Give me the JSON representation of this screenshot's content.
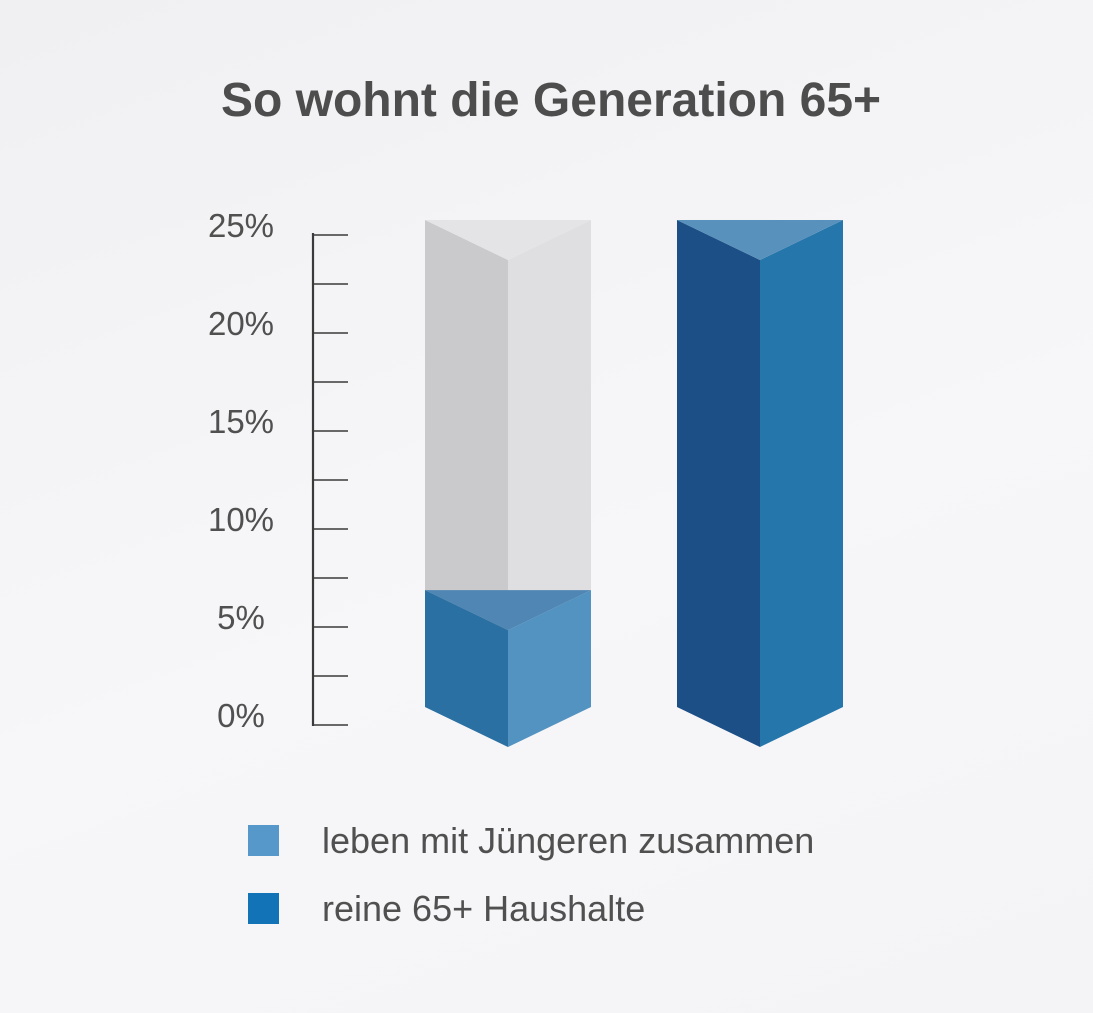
{
  "chart_data": {
    "type": "bar",
    "title": "So wohnt die Generation 65+",
    "xlabel": "",
    "ylabel": "",
    "ylim": [
      0,
      25
    ],
    "yticks": [
      "0%",
      "5%",
      "10%",
      "15%",
      "20%",
      "25%"
    ],
    "grid": false,
    "legend_placement": "bottom",
    "categories": [
      "leben mit Jüngeren zusammen",
      "reine 65+ Haushalte"
    ],
    "values": [
      6,
      25
    ],
    "series": [
      {
        "name": "leben mit Jüngeren zusammen",
        "value": 6,
        "color": "#5598c9"
      },
      {
        "name": "reine 65+ Haushalte",
        "value": 25,
        "color": "#1373b7"
      }
    ],
    "colors": {
      "background": "#f4f4f6",
      "text": "#505050",
      "bar_empty_left": "#cacacc",
      "bar_empty_right": "#dfdfe1",
      "bar_empty_top": "#e4e4e6",
      "bar1_left": "#2a70a3",
      "bar1_right": "#5393c2",
      "bar1_top": "#4f86b3",
      "bar2_left": "#1c4f86",
      "bar2_right": "#2576ab",
      "bar2_top": "#5991bd"
    }
  }
}
